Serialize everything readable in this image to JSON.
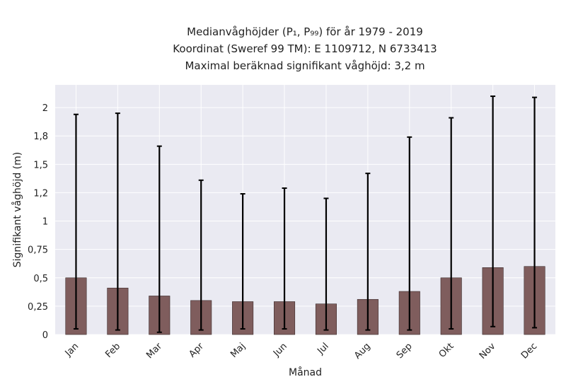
{
  "chart_data": {
    "type": "bar",
    "title_lines": [
      "Medianvåghöjder (P₁, P₉₉) för år 1979 - 2019",
      "Koordinat (Sweref 99 TM): E 1109712, N 6733413",
      "Maximal beräknad signifikant våghöjd: 3,2 m"
    ],
    "xlabel": "Månad",
    "ylabel": "Signifikant våghöjd (m)",
    "categories": [
      "Jan",
      "Feb",
      "Mar",
      "Apr",
      "Maj",
      "Jun",
      "Jul",
      "Aug",
      "Sep",
      "Okt",
      "Nov",
      "Dec"
    ],
    "series": [
      {
        "values": [
          0.5,
          0.41,
          0.34,
          0.3,
          0.29,
          0.29,
          0.27,
          0.31,
          0.38,
          0.5,
          0.59,
          0.6
        ],
        "low": [
          0.05,
          0.04,
          0.02,
          0.04,
          0.05,
          0.05,
          0.04,
          0.04,
          0.04,
          0.05,
          0.07,
          0.06
        ],
        "high": [
          1.94,
          1.95,
          1.66,
          1.36,
          1.24,
          1.29,
          1.2,
          1.42,
          1.74,
          1.91,
          2.1,
          2.09
        ]
      }
    ],
    "yticks": [
      0,
      0.25,
      0.5,
      0.75,
      1,
      1.25,
      1.5,
      1.75,
      2
    ],
    "ytick_labels": [
      "0",
      "0,25",
      "0,5",
      "0,75",
      "1",
      "1,2",
      "1,5",
      "1,8",
      "2"
    ],
    "ylim": [
      0,
      2.2
    ],
    "grid": true,
    "bar_color": "#7f5d5d",
    "plot_bg": "#eaeaf2",
    "grid_color": "#ffffff",
    "errorbar_color": "#000000"
  }
}
